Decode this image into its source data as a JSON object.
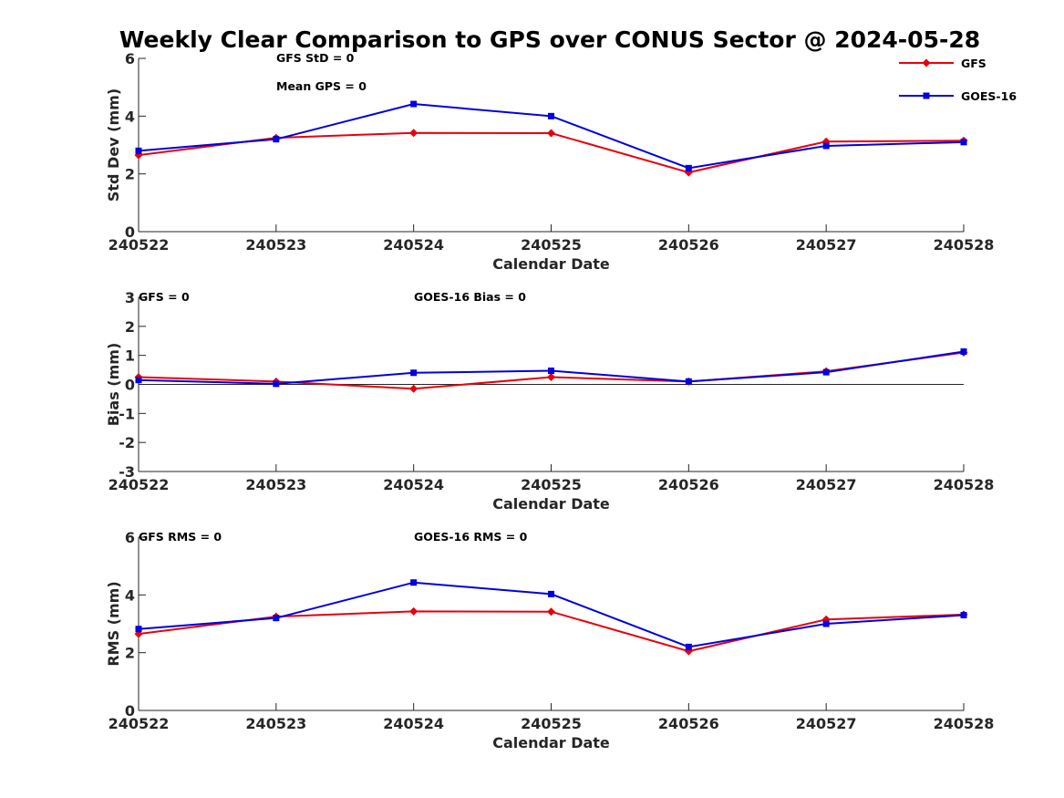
{
  "figure": {
    "title": "Weekly Clear Comparison to GPS over CONUS Sector @ 2024-05-28"
  },
  "legend": {
    "position": "top-right",
    "entries": [
      {
        "label": "GFS",
        "color": "#e8000b",
        "marker": "diamond"
      },
      {
        "label": "GOES-16",
        "color": "#0000e0",
        "marker": "square"
      }
    ]
  },
  "chart_data": [
    {
      "type": "line",
      "xlabel": "Calendar Date",
      "ylabel": "Std Dev (mm)",
      "ylim": [
        0,
        6
      ],
      "yticks": [
        "0",
        "2",
        "4",
        "6"
      ],
      "categories": [
        "240522",
        "240523",
        "240524",
        "240525",
        "240526",
        "240527",
        "240528"
      ],
      "zero_line": false,
      "annotations": [
        "GFS StD = 0",
        "Mean GPS = 0"
      ],
      "series": [
        {
          "name": "GFS",
          "color": "#e8000b",
          "marker": "diamond",
          "values": [
            2.65,
            3.25,
            3.42,
            3.41,
            2.05,
            3.12,
            3.15
          ]
        },
        {
          "name": "GOES-16",
          "color": "#0000e0",
          "marker": "square",
          "values": [
            2.8,
            3.2,
            4.42,
            4.0,
            2.2,
            2.97,
            3.1
          ]
        }
      ]
    },
    {
      "type": "line",
      "xlabel": "Calendar Date",
      "ylabel": "Bias (mm)",
      "ylim": [
        -3,
        3
      ],
      "yticks": [
        "-3",
        "-2",
        "-1",
        "0",
        "1",
        "2",
        "3"
      ],
      "categories": [
        "240522",
        "240523",
        "240524",
        "240525",
        "240526",
        "240527",
        "240528"
      ],
      "zero_line": true,
      "annotations": [
        "GFS = 0",
        "GOES-16 Bias  = 0"
      ],
      "series": [
        {
          "name": "GFS",
          "color": "#e8000b",
          "marker": "diamond",
          "values": [
            0.25,
            0.1,
            -0.15,
            0.25,
            0.1,
            0.45,
            1.1
          ]
        },
        {
          "name": "GOES-16",
          "color": "#0000e0",
          "marker": "square",
          "values": [
            0.15,
            0.02,
            0.4,
            0.47,
            0.1,
            0.42,
            1.13
          ]
        }
      ]
    },
    {
      "type": "line",
      "xlabel": "Calendar Date",
      "ylabel": "RMS (mm)",
      "ylim": [
        0,
        6
      ],
      "yticks": [
        "0",
        "2",
        "4",
        "6"
      ],
      "categories": [
        "240522",
        "240523",
        "240524",
        "240525",
        "240526",
        "240527",
        "240528"
      ],
      "zero_line": false,
      "annotations": [
        "GFS RMS = 0",
        "GOES-16 RMS = 0"
      ],
      "series": [
        {
          "name": "GFS",
          "color": "#e8000b",
          "marker": "diamond",
          "values": [
            2.65,
            3.25,
            3.43,
            3.42,
            2.05,
            3.15,
            3.32
          ]
        },
        {
          "name": "GOES-16",
          "color": "#0000e0",
          "marker": "square",
          "values": [
            2.82,
            3.2,
            4.43,
            4.03,
            2.2,
            3.0,
            3.3
          ]
        }
      ]
    }
  ]
}
